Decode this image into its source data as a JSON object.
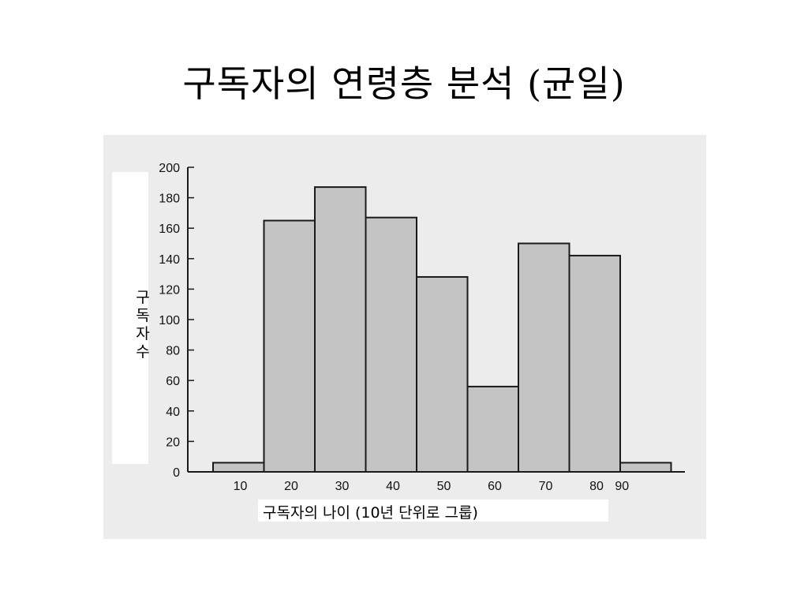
{
  "slide": {
    "title": "구독자의 연령층 분석 (균일)"
  },
  "chart_data": {
    "type": "bar",
    "title": "",
    "xlabel": "구독자의 나이 (10년 단위로 그룹)",
    "ylabel": "구독자 수",
    "categories": [
      "10",
      "20",
      "30",
      "40",
      "50",
      "60",
      "70",
      "80",
      "90"
    ],
    "values": [
      6,
      165,
      187,
      167,
      128,
      56,
      150,
      142,
      6
    ],
    "ylim": [
      0,
      200
    ],
    "yticks": [
      0,
      20,
      40,
      60,
      80,
      100,
      120,
      140,
      160,
      180,
      200
    ],
    "grid": false,
    "legend": "none",
    "colors": {
      "bar_fill": "#c4c4c4",
      "bar_stroke": "#1a1a1a",
      "axis": "#1a1a1a"
    }
  }
}
